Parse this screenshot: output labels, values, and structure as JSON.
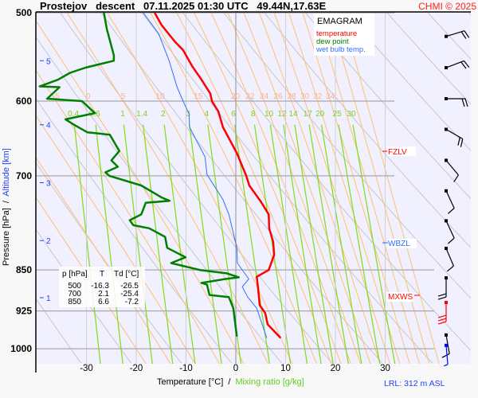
{
  "header": {
    "title": "Prostejov   descent   07.11.2025 01:30 UTC   49.44N,17.63E",
    "copyright": "CHMI © 2025"
  },
  "legend": {
    "title": "EMAGRAM",
    "items": [
      {
        "label": "temperature",
        "color": "#ff0000"
      },
      {
        "label": "dew point",
        "color": "#008000"
      },
      {
        "label": "wet bulb temp.",
        "color": "#3070ff"
      }
    ]
  },
  "table": {
    "headers": [
      "p [hPa]",
      "T",
      "Td [°C]"
    ],
    "rows": [
      [
        "500",
        "-16.3",
        "-26.5"
      ],
      [
        "700",
        "2.1",
        "-25.4"
      ],
      [
        "850",
        "6.6",
        "-7.2"
      ]
    ]
  },
  "levels": {
    "fzlv": "FZLV",
    "wbzl": "WBZL",
    "mxws": "MXWS"
  },
  "footer": {
    "xlabel_temp": "Temperature [°C]",
    "xlabel_sep": "/",
    "xlabel_mix": "Mixing ratio [g/kg]",
    "ylabel_pressure": "Pressure [hPa]",
    "ylabel_sep": "/",
    "ylabel_alt": "Altitude [km]",
    "lrl": "LRL: 312 m ASL"
  },
  "chart_data": {
    "type": "line",
    "subtype": "emagram",
    "title": "Prostejov descent 07.11.2025 01:30 UTC 49.44N,17.63E",
    "xlabel": "Temperature [°C] / Mixing ratio [g/kg]",
    "ylabel": "Pressure [hPa] / Altitude [km]",
    "xlim": [
      -38,
      42
    ],
    "ylim_hpa": [
      500,
      1032
    ],
    "x_ticks": [
      "-30",
      "-20",
      "-10",
      "0",
      "10",
      "20",
      "30"
    ],
    "x_tick_values": [
      -30,
      -20,
      -10,
      0,
      10,
      20,
      30
    ],
    "y_ticks": [
      "500",
      "600",
      "700",
      "850",
      "925",
      "1000"
    ],
    "y_tick_values": [
      500,
      600,
      700,
      850,
      925,
      1000
    ],
    "altitude_ticks": [
      {
        "label": "5",
        "p": 552
      },
      {
        "label": "4",
        "p": 630
      },
      {
        "label": "3",
        "p": 710
      },
      {
        "label": "2",
        "p": 800
      },
      {
        "label": "1",
        "p": 900
      }
    ],
    "moist_adiabat_labels": [
      "-5",
      "0",
      "5",
      "10",
      "15",
      "20",
      "22",
      "24",
      "26",
      "28",
      "30",
      "32",
      "34"
    ],
    "moist_adiabat_values": [
      -5,
      0,
      5,
      10,
      15,
      20,
      22,
      24,
      26,
      28,
      30,
      32,
      34
    ],
    "mixing_ratio_labels": [
      "0.4",
      "0.6",
      "1",
      "1.4",
      "2",
      "3",
      "4",
      "6",
      "8",
      "10",
      "12",
      "14",
      "17",
      "20",
      "25",
      "30"
    ],
    "mixing_ratio_values": [
      0.4,
      0.6,
      1,
      1.4,
      2,
      3,
      4,
      6,
      8,
      10,
      12,
      14,
      17,
      20,
      25,
      30
    ],
    "series": [
      {
        "name": "temperature",
        "color": "#ff0000",
        "points": [
          [
            500,
            -16.3
          ],
          [
            513,
            -14.9
          ],
          [
            531,
            -12.2
          ],
          [
            540,
            -10.6
          ],
          [
            558,
            -8.8
          ],
          [
            574,
            -6.9
          ],
          [
            591,
            -5.1
          ],
          [
            600,
            -4.8
          ],
          [
            613,
            -3.5
          ],
          [
            633,
            -2.6
          ],
          [
            668,
            0.2
          ],
          [
            700,
            2.1
          ],
          [
            714,
            2.7
          ],
          [
            738,
            5.0
          ],
          [
            758,
            6.6
          ],
          [
            780,
            6.7
          ],
          [
            802,
            7.5
          ],
          [
            824,
            7.7
          ],
          [
            850,
            6.6
          ],
          [
            862,
            4.2
          ],
          [
            885,
            4.5
          ],
          [
            914,
            4.8
          ],
          [
            929,
            5.9
          ],
          [
            951,
            6.4
          ],
          [
            978,
            9.0
          ]
        ]
      },
      {
        "name": "dew point",
        "color": "#008000",
        "points": [
          [
            500,
            -26.5
          ],
          [
            517,
            -25.9
          ],
          [
            546,
            -24.5
          ],
          [
            552,
            -24.5
          ],
          [
            560,
            -30.2
          ],
          [
            566,
            -33.3
          ],
          [
            574,
            -35.7
          ],
          [
            582,
            -39.4
          ],
          [
            583,
            -35.4
          ],
          [
            597,
            -37.9
          ],
          [
            600,
            -30.9
          ],
          [
            615,
            -28.3
          ],
          [
            623,
            -34.2
          ],
          [
            630,
            -32.5
          ],
          [
            640,
            -29.8
          ],
          [
            643,
            -25.3
          ],
          [
            665,
            -23.4
          ],
          [
            678,
            -25.0
          ],
          [
            687,
            -23.7
          ],
          [
            695,
            -26.2
          ],
          [
            700,
            -25.4
          ],
          [
            714,
            -19.0
          ],
          [
            732,
            -14.9
          ],
          [
            737,
            -13.3
          ],
          [
            740,
            -18.1
          ],
          [
            758,
            -19.0
          ],
          [
            767,
            -21.3
          ],
          [
            775,
            -20.6
          ],
          [
            780,
            -17.4
          ],
          [
            794,
            -14.2
          ],
          [
            812,
            -13.8
          ],
          [
            828,
            -10.1
          ],
          [
            838,
            -13.0
          ],
          [
            850,
            -7.2
          ],
          [
            856,
            -1.8
          ],
          [
            863,
            0.6
          ],
          [
            866,
            -2.1
          ],
          [
            873,
            -6.9
          ],
          [
            876,
            -5.8
          ],
          [
            895,
            -5.3
          ],
          [
            899,
            -1.4
          ],
          [
            920,
            -0.5
          ],
          [
            975,
            0.2
          ]
        ]
      },
      {
        "name": "wet bulb temp.",
        "color": "#3070ff",
        "points": [
          [
            500,
            -18.6
          ],
          [
            522,
            -15.5
          ],
          [
            552,
            -13.4
          ],
          [
            583,
            -11.8
          ],
          [
            600,
            -10.6
          ],
          [
            616,
            -9.4
          ],
          [
            633,
            -9.3
          ],
          [
            673,
            -6.2
          ],
          [
            698,
            -5.8
          ],
          [
            735,
            -2.6
          ],
          [
            758,
            -1.4
          ],
          [
            812,
            0.2
          ],
          [
            838,
            0.3
          ],
          [
            866,
            2.6
          ],
          [
            880,
            1.3
          ],
          [
            899,
            2.4
          ],
          [
            920,
            4.2
          ],
          [
            978,
            6.2
          ]
        ]
      }
    ],
    "special_levels": [
      {
        "name": "FZLV",
        "p": 668
      },
      {
        "name": "WBZL",
        "p": 811
      },
      {
        "name": "MXWS",
        "p": 897
      }
    ],
    "wind_barbs": [
      {
        "p": 525,
        "dir": 73,
        "kt": 20,
        "color": "#000000"
      },
      {
        "p": 560,
        "dir": 69,
        "kt": 20,
        "color": "#000000"
      },
      {
        "p": 597,
        "dir": 90,
        "kt": 20,
        "color": "#000000"
      },
      {
        "p": 636,
        "dir": 120,
        "kt": 20,
        "color": "#000000"
      },
      {
        "p": 678,
        "dir": 140,
        "kt": 10,
        "color": "#000000"
      },
      {
        "p": 722,
        "dir": 155,
        "kt": 10,
        "color": "#000000"
      },
      {
        "p": 768,
        "dir": 155,
        "kt": 10,
        "color": "#000000"
      },
      {
        "p": 813,
        "dir": 157,
        "kt": 10,
        "color": "#000000"
      },
      {
        "p": 864,
        "dir": 180,
        "kt": 20,
        "color": "#000000"
      },
      {
        "p": 909,
        "dir": 180,
        "kt": 30,
        "color": "#ff0000"
      },
      {
        "p": 972,
        "dir": 170,
        "kt": 10,
        "color": "#000000"
      },
      {
        "p": 993,
        "dir": 175,
        "kt": 5,
        "color": "#0000ff"
      }
    ]
  }
}
